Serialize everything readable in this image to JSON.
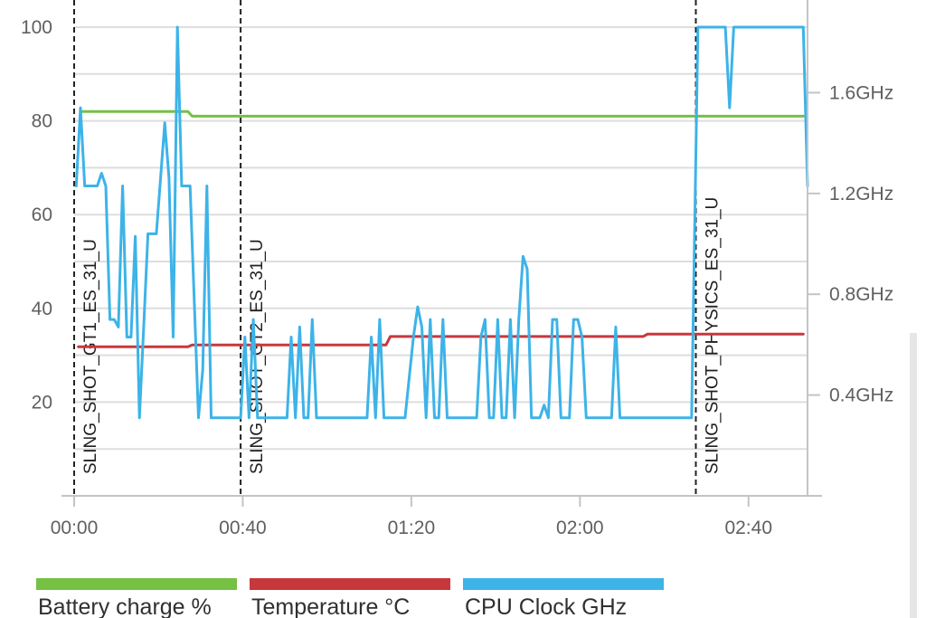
{
  "chart_data": {
    "type": "line",
    "title": "",
    "xlabel": "",
    "x_unit": "minutes:seconds",
    "xlim": [
      0,
      174
    ],
    "x_ticks": [
      {
        "value": 0,
        "label": "00:00"
      },
      {
        "value": 40,
        "label": "00:40"
      },
      {
        "value": 80,
        "label": "01:20"
      },
      {
        "value": 120,
        "label": "02:00"
      },
      {
        "value": 160,
        "label": "02:40"
      }
    ],
    "left_axis": {
      "ylim": [
        0,
        100
      ],
      "ticks": [
        {
          "value": 20,
          "label": "20"
        },
        {
          "value": 40,
          "label": "40"
        },
        {
          "value": 60,
          "label": "60"
        },
        {
          "value": 80,
          "label": "80"
        },
        {
          "value": 100,
          "label": "100"
        }
      ]
    },
    "right_axis": {
      "unit": "GHz",
      "ylim": [
        0,
        1.86
      ],
      "ticks": [
        {
          "value": 0.4,
          "label": "0.4GHz"
        },
        {
          "value": 0.8,
          "label": "0.8GHz"
        },
        {
          "value": 1.2,
          "label": "1.2GHz"
        },
        {
          "value": 1.6,
          "label": "1.6GHz"
        }
      ]
    },
    "grid": true,
    "legend_position": "bottom",
    "markers": [
      {
        "x": 0,
        "label": "SLING_SHOT_GT1_ES_31_U"
      },
      {
        "x": 39.5,
        "label": "SLING_SHOT_GT2_ES_31_U"
      },
      {
        "x": 147.5,
        "label": "SLING_SHOT_PHYSICS_ES_31_U"
      }
    ],
    "series": [
      {
        "name": "Battery charge %",
        "axis": "left",
        "color": "#76c043",
        "points": [
          [
            1.5,
            82
          ],
          [
            27,
            82
          ],
          [
            28,
            81
          ],
          [
            173,
            81
          ]
        ]
      },
      {
        "name": "Temperature °C",
        "axis": "left",
        "color": "#c8373b",
        "points": [
          [
            1,
            31.8
          ],
          [
            27,
            31.8
          ],
          [
            28,
            32.2
          ],
          [
            74,
            32.2
          ],
          [
            75,
            34
          ],
          [
            135,
            34
          ],
          [
            136,
            34.5
          ],
          [
            173,
            34.5
          ]
        ]
      },
      {
        "name": "CPU Clock GHz",
        "axis": "right",
        "color": "#3db3e8",
        "points": [
          [
            0.5,
            1.23
          ],
          [
            1.5,
            1.54
          ],
          [
            2.5,
            1.23
          ],
          [
            5.5,
            1.23
          ],
          [
            6.5,
            1.28
          ],
          [
            7.5,
            1.23
          ],
          [
            8.5,
            0.7
          ],
          [
            9.5,
            0.7
          ],
          [
            10.5,
            0.67
          ],
          [
            11.5,
            1.23
          ],
          [
            12.5,
            0.63
          ],
          [
            13.5,
            0.63
          ],
          [
            14.5,
            1.03
          ],
          [
            15.5,
            0.31
          ],
          [
            16.5,
            0.67
          ],
          [
            17.5,
            1.04
          ],
          [
            19.5,
            1.04
          ],
          [
            21.5,
            1.48
          ],
          [
            22.5,
            1.26
          ],
          [
            23.5,
            0.63
          ],
          [
            24.5,
            1.86
          ],
          [
            25.5,
            1.23
          ],
          [
            27.5,
            1.23
          ],
          [
            29.5,
            0.31
          ],
          [
            30.5,
            0.5
          ],
          [
            31.5,
            1.23
          ],
          [
            32.5,
            0.31
          ],
          [
            39.5,
            0.31
          ],
          [
            40.5,
            0.63
          ],
          [
            41.5,
            0.31
          ],
          [
            42.5,
            0.7
          ],
          [
            43.5,
            0.31
          ],
          [
            50.5,
            0.31
          ],
          [
            51.5,
            0.63
          ],
          [
            52.5,
            0.31
          ],
          [
            53.5,
            0.67
          ],
          [
            54.5,
            0.31
          ],
          [
            55.5,
            0.31
          ],
          [
            56.5,
            0.7
          ],
          [
            57.5,
            0.31
          ],
          [
            69.5,
            0.31
          ],
          [
            70.5,
            0.63
          ],
          [
            71.5,
            0.31
          ],
          [
            72.5,
            0.7
          ],
          [
            73.5,
            0.31
          ],
          [
            78.5,
            0.31
          ],
          [
            80.5,
            0.63
          ],
          [
            81.5,
            0.75
          ],
          [
            82.5,
            0.67
          ],
          [
            83.5,
            0.31
          ],
          [
            84.5,
            0.7
          ],
          [
            85.5,
            0.31
          ],
          [
            86.5,
            0.31
          ],
          [
            87.5,
            0.7
          ],
          [
            88.5,
            0.31
          ],
          [
            95.5,
            0.31
          ],
          [
            96.5,
            0.63
          ],
          [
            97.5,
            0.7
          ],
          [
            98.5,
            0.31
          ],
          [
            99.5,
            0.31
          ],
          [
            100.5,
            0.7
          ],
          [
            101.5,
            0.31
          ],
          [
            102.5,
            0.31
          ],
          [
            103.5,
            0.7
          ],
          [
            104.5,
            0.31
          ],
          [
            105.5,
            0.7
          ],
          [
            106.5,
            0.95
          ],
          [
            107.5,
            0.9
          ],
          [
            108.5,
            0.31
          ],
          [
            110.5,
            0.31
          ],
          [
            111.5,
            0.36
          ],
          [
            112.5,
            0.31
          ],
          [
            113.5,
            0.7
          ],
          [
            114.5,
            0.7
          ],
          [
            115.5,
            0.31
          ],
          [
            117.5,
            0.31
          ],
          [
            118.5,
            0.7
          ],
          [
            119.5,
            0.7
          ],
          [
            120.5,
            0.63
          ],
          [
            121.5,
            0.31
          ],
          [
            127.5,
            0.31
          ],
          [
            128.5,
            0.67
          ],
          [
            129.5,
            0.31
          ],
          [
            146.5,
            0.31
          ],
          [
            148.0,
            1.86
          ],
          [
            154.5,
            1.86
          ],
          [
            155.5,
            1.54
          ],
          [
            156.5,
            1.86
          ],
          [
            173.0,
            1.86
          ],
          [
            174.0,
            1.23
          ]
        ]
      }
    ]
  }
}
